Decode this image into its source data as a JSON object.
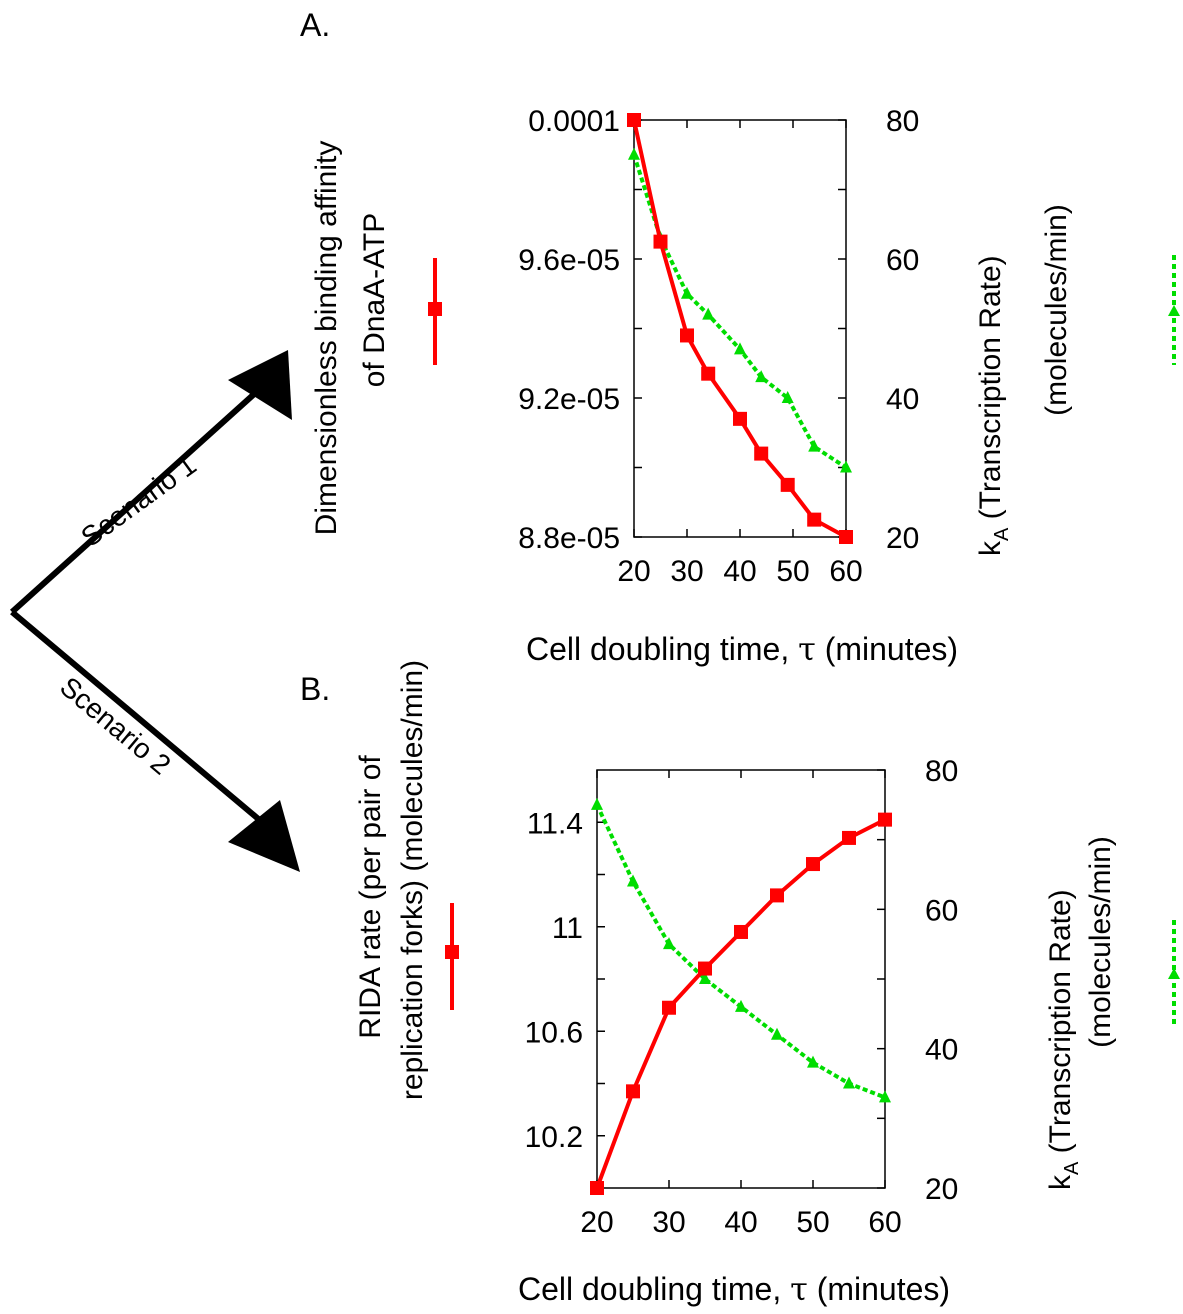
{
  "colors": {
    "red": "#ff0000",
    "green": "#00dd00",
    "axis": "#000000"
  },
  "scenario_labels": [
    "Scenario 1",
    "Scenario 2"
  ],
  "chart_data": [
    {
      "panel": "A.",
      "type": "line",
      "xlabel_prefix": "Cell doubling time, ",
      "xlabel_symbol": "τ",
      "xlabel_suffix": " (minutes)",
      "x_ticks": [
        "20",
        "30",
        "40",
        "50",
        "60"
      ],
      "xlim": [
        20,
        60
      ],
      "ylabel_lines": [
        "Dimensionless binding affinity",
        "of DnaA-ATP"
      ],
      "y_ticks": [
        "8.8e-05",
        "9.2e-05",
        "9.6e-05",
        "0.0001"
      ],
      "y_tick_values": [
        8.8e-05,
        9.2e-05,
        9.6e-05,
        0.0001
      ],
      "ylim": [
        8.8e-05,
        0.0001
      ],
      "y2label_lines": [
        "k",
        "A",
        " (Transcription Rate)",
        "(molecules/min)"
      ],
      "y2_ticks": [
        "20",
        "40",
        "60",
        "80"
      ],
      "y2_tick_values": [
        20,
        40,
        60,
        80
      ],
      "y2lim": [
        20,
        80
      ],
      "series": [
        {
          "axis": "left",
          "color": "#ff0000",
          "marker": "square",
          "dash": false,
          "x": [
            20,
            25,
            30,
            34,
            40,
            44,
            49,
            54,
            60
          ],
          "y": [
            0.0001,
            9.65e-05,
            9.38e-05,
            9.27e-05,
            9.14e-05,
            9.04e-05,
            8.95e-05,
            8.85e-05,
            8.8e-05
          ]
        },
        {
          "axis": "right",
          "color": "#00dd00",
          "marker": "triangle",
          "dash": true,
          "x": [
            20,
            25,
            30,
            34,
            40,
            44,
            49,
            54,
            60
          ],
          "y": [
            75,
            63,
            55,
            52,
            47,
            43,
            40,
            33,
            30
          ]
        }
      ]
    },
    {
      "panel": "B.",
      "type": "line",
      "xlabel_prefix": "Cell doubling time, ",
      "xlabel_symbol": "τ",
      "xlabel_suffix": " (minutes)",
      "x_ticks": [
        "20",
        "30",
        "40",
        "50",
        "60"
      ],
      "xlim": [
        20,
        60
      ],
      "ylabel_lines": [
        "RIDA rate (per pair of",
        "replication forks) (molecules/min)"
      ],
      "y_ticks": [
        "10.2",
        "10.6",
        "11",
        "11.4"
      ],
      "y_tick_values": [
        10.2,
        10.6,
        11.0,
        11.4
      ],
      "ylim": [
        10.0,
        11.6
      ],
      "y2label_lines": [
        "k",
        "A",
        " (Transcription Rate)",
        "(molecules/min)"
      ],
      "y2_ticks": [
        "20",
        "40",
        "60",
        "80"
      ],
      "y2_tick_values": [
        20,
        40,
        60,
        80
      ],
      "y2lim": [
        20,
        80
      ],
      "series": [
        {
          "axis": "left",
          "color": "#ff0000",
          "marker": "square",
          "dash": false,
          "x": [
            20,
            25,
            30,
            35,
            40,
            45,
            50,
            55,
            60
          ],
          "y": [
            10.0,
            10.37,
            10.69,
            10.84,
            10.98,
            11.12,
            11.24,
            11.34,
            11.41
          ]
        },
        {
          "axis": "right",
          "color": "#00dd00",
          "marker": "triangle",
          "dash": true,
          "x": [
            20,
            25,
            30,
            35,
            40,
            45,
            50,
            55,
            60
          ],
          "y": [
            75,
            64,
            55,
            50,
            46,
            42,
            38,
            35,
            33
          ]
        }
      ]
    }
  ]
}
